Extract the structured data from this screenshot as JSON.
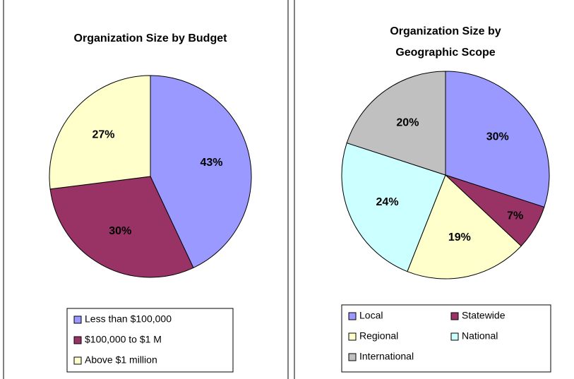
{
  "chart_data": [
    {
      "type": "pie",
      "title": [
        "Organization Size by Budget"
      ],
      "categories": [
        "Less than $100,000",
        "$100,000 to $1 M",
        "Above $1 million"
      ],
      "values": [
        43,
        30,
        27
      ],
      "value_labels": [
        "43%",
        "30%",
        "27%"
      ],
      "colors": [
        "#9999ff",
        "#993366",
        "#ffffcc"
      ],
      "legend": "bottom"
    },
    {
      "type": "pie",
      "title": [
        "Organization Size by",
        "Geographic Scope"
      ],
      "categories": [
        "Local",
        "Statewide",
        "Regional",
        "National",
        "International"
      ],
      "values": [
        30,
        7,
        19,
        24,
        20
      ],
      "value_labels": [
        "30%",
        "7%",
        "19%",
        "24%",
        "20%"
      ],
      "colors": [
        "#9999ff",
        "#993366",
        "#ffffcc",
        "#ccffff",
        "#c0c0c0"
      ],
      "legend": "bottom"
    }
  ]
}
